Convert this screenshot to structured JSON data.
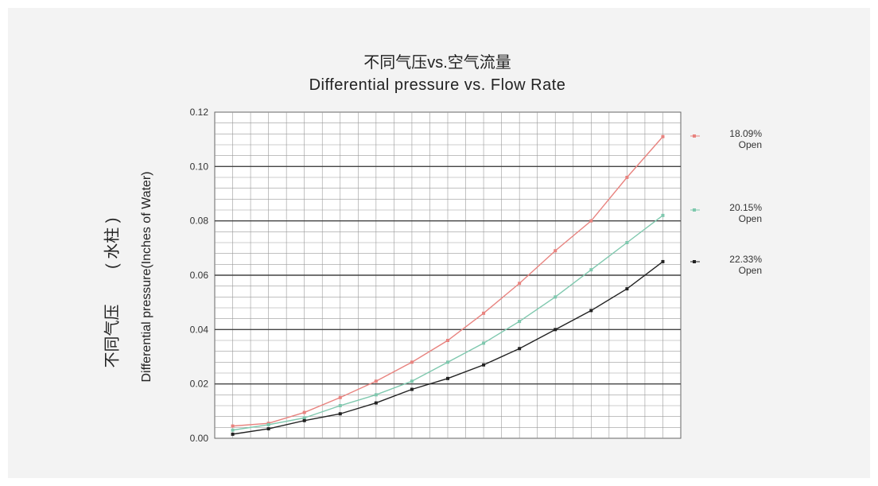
{
  "chart_data": {
    "type": "scatter",
    "title": "不同气压vs.空气流量",
    "subtitle": "Differential  pressure  vs. Flow Rate",
    "ylabel": "Differential pressure(Inches of Water)",
    "ylabel_cn": "不同气压        ( 水柱 )",
    "xlabel": "",
    "ylim": [
      0,
      0.12
    ],
    "yticks": [
      "0.00",
      "0.02",
      "0.04",
      "0.06",
      "0.08",
      "0.10",
      "0.12"
    ],
    "grid": true,
    "legend_position": "right",
    "x": [
      1,
      2,
      3,
      4,
      5,
      6,
      7,
      8,
      9,
      10,
      11,
      12,
      13
    ],
    "series": [
      {
        "name": "18.09% Open",
        "color": "#e8837f",
        "values": [
          0.0045,
          0.0055,
          0.0095,
          0.015,
          0.021,
          0.028,
          0.036,
          0.046,
          0.057,
          0.069,
          0.08,
          0.096,
          0.111
        ]
      },
      {
        "name": "20.15% Open",
        "color": "#7fc8ae",
        "values": [
          0.003,
          0.005,
          0.0075,
          0.012,
          0.016,
          0.021,
          0.028,
          0.035,
          0.043,
          0.052,
          0.062,
          0.072,
          0.082
        ]
      },
      {
        "name": "22.33% Open",
        "color": "#222222",
        "values": [
          0.0015,
          0.0035,
          0.0065,
          0.009,
          0.013,
          0.018,
          0.022,
          0.027,
          0.033,
          0.04,
          0.047,
          0.055,
          0.065
        ]
      }
    ]
  }
}
